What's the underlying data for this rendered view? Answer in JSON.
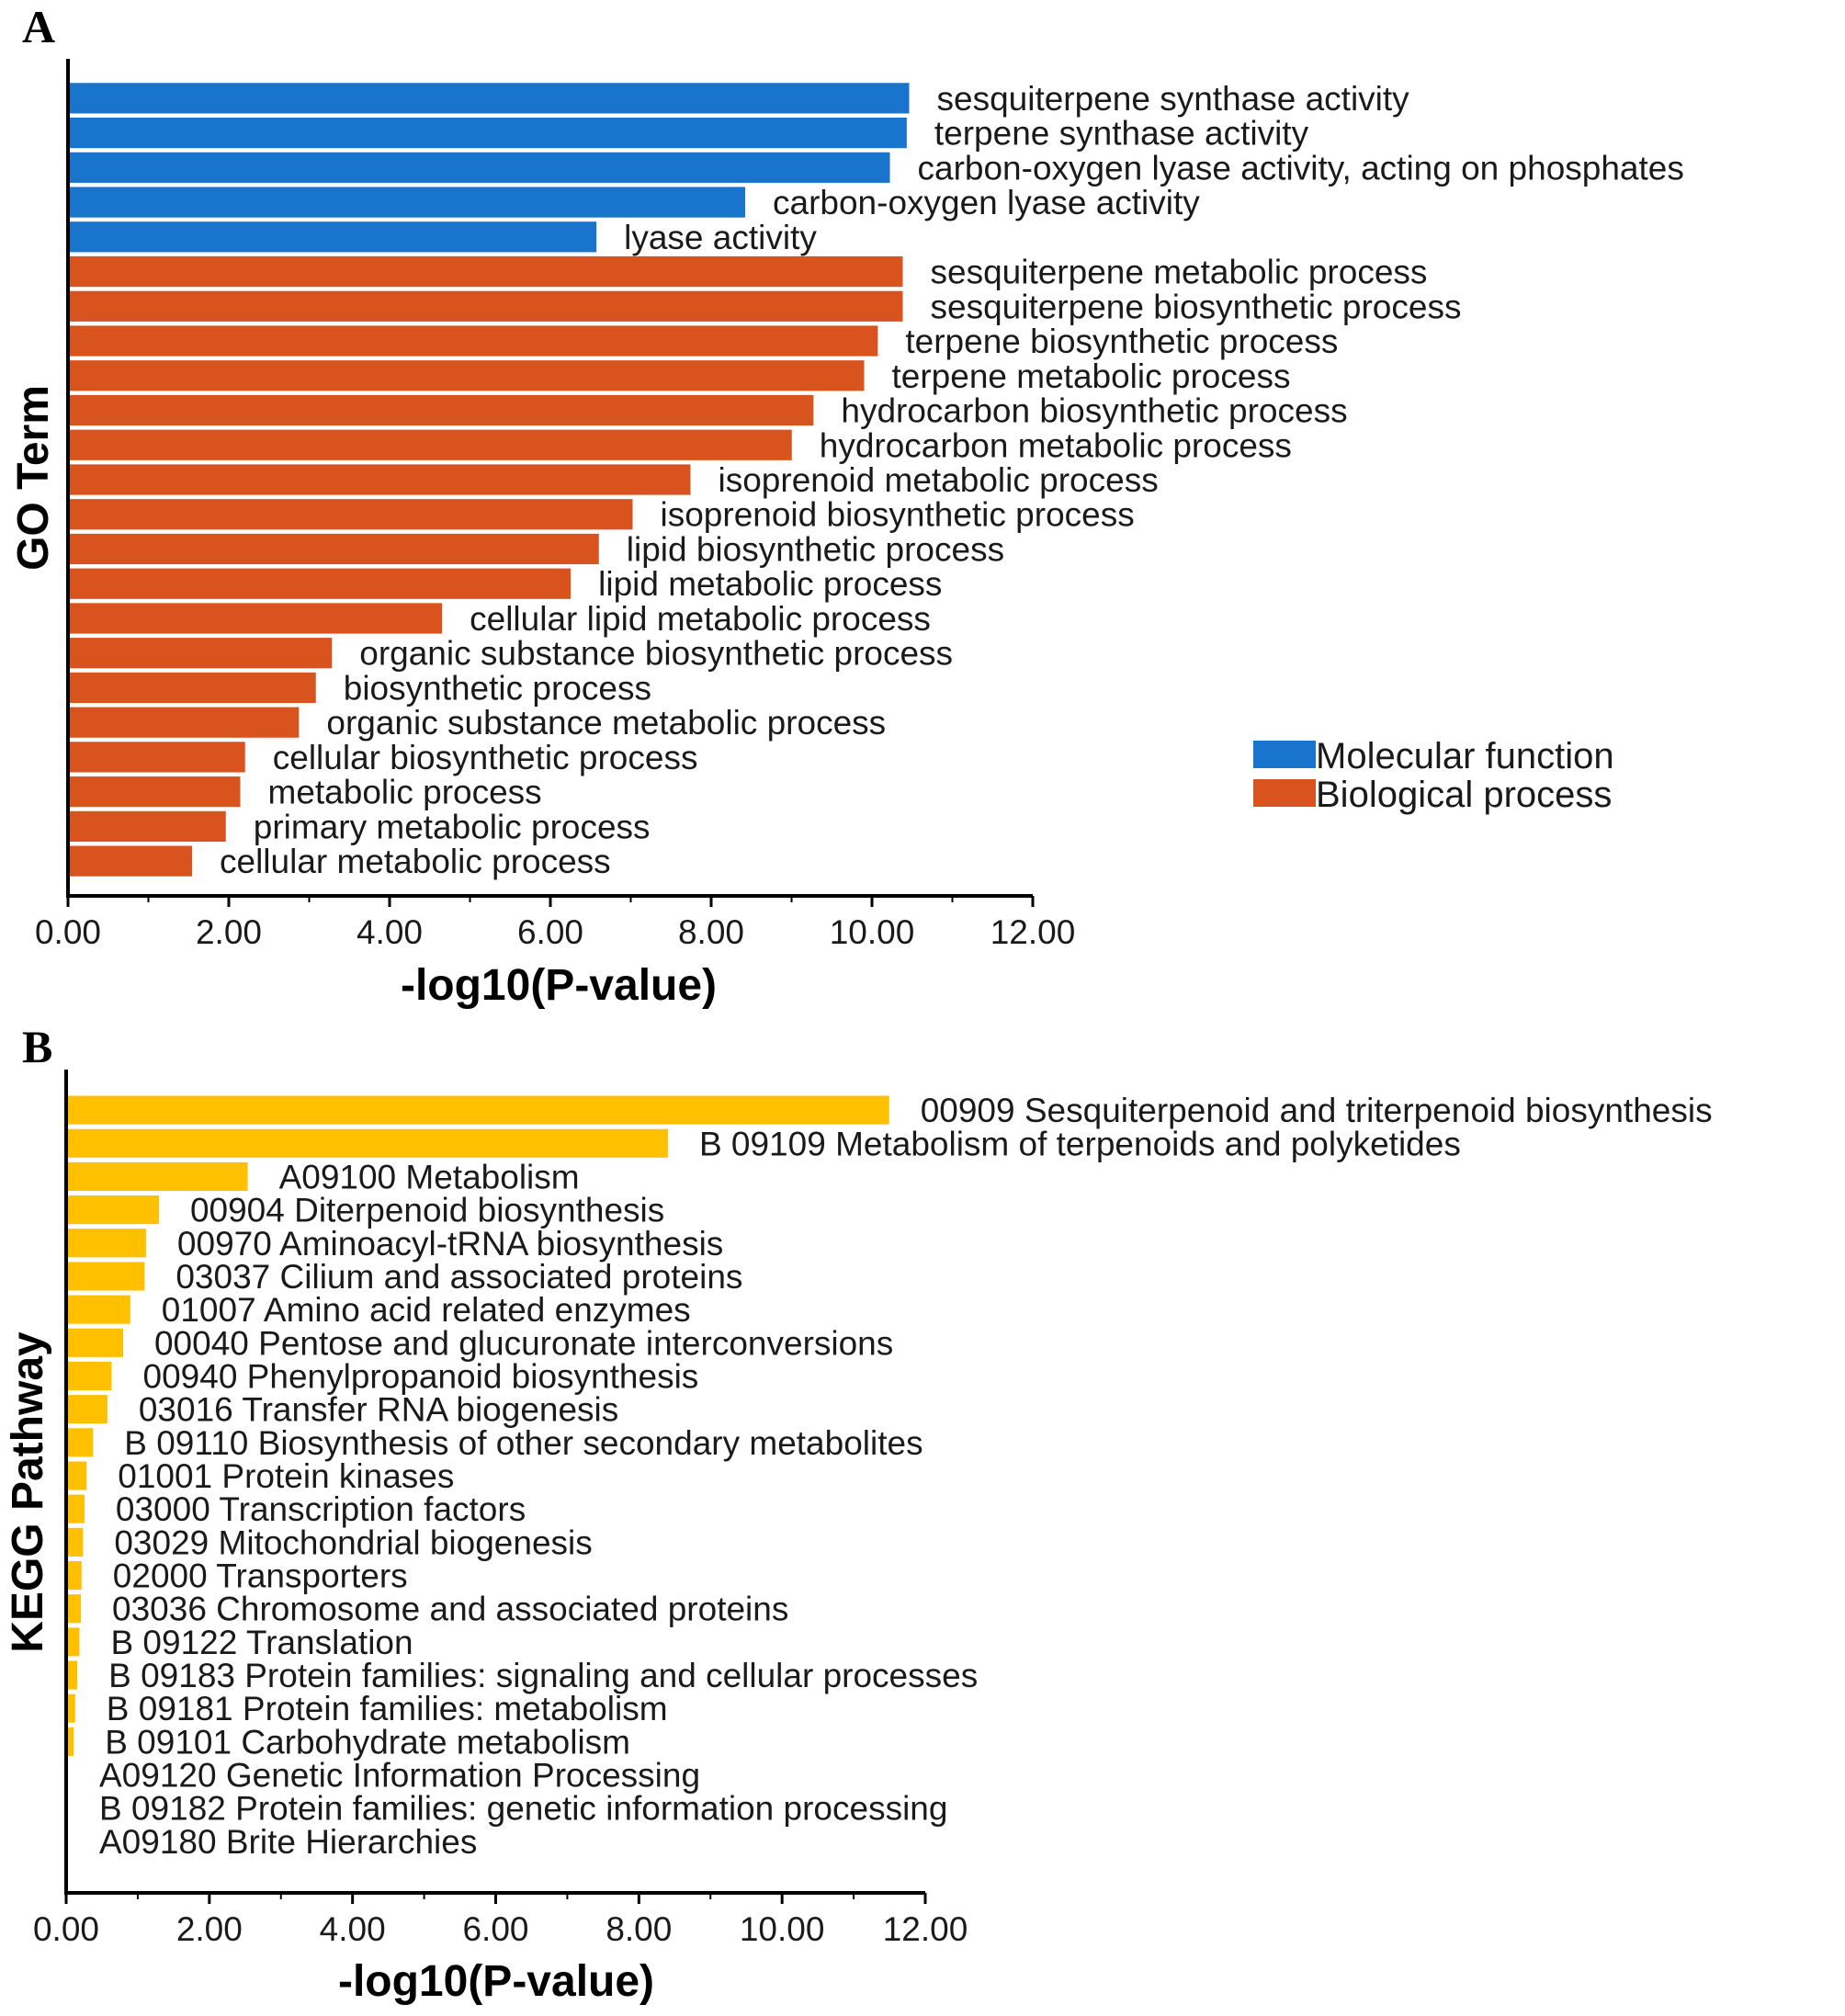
{
  "panel_labels": [
    "A",
    "B"
  ],
  "colors": {
    "molecular_function": "#1874cd",
    "biological_process": "#d9531e",
    "kegg": "#ffc000",
    "axis": "#000000"
  },
  "chart_data": [
    {
      "type": "bar",
      "orientation": "horizontal",
      "panel": "A",
      "title": "",
      "xlabel": "-log10(P-value)",
      "ylabel": "GO Term",
      "xlim": [
        0,
        12
      ],
      "xticks": [
        "0.00",
        "2.00",
        "4.00",
        "6.00",
        "8.00",
        "10.00",
        "12.00"
      ],
      "grid": false,
      "legend": {
        "position": "right",
        "entries": [
          "Molecular function",
          "Biological process"
        ]
      },
      "categories": [
        "sesquiterpene synthase activity",
        "terpene synthase activity",
        "carbon-oxygen lyase activity, acting on phosphates",
        "carbon-oxygen lyase activity",
        "lyase activity",
        "sesquiterpene metabolic process",
        "sesquiterpene biosynthetic process",
        "terpene biosynthetic process",
        "terpene metabolic process",
        "hydrocarbon biosynthetic process",
        "hydrocarbon metabolic process",
        "isoprenoid metabolic process",
        "isoprenoid biosynthetic process",
        "lipid biosynthetic process",
        "lipid metabolic process",
        "cellular lipid metabolic process",
        "organic substance biosynthetic process",
        "biosynthetic process",
        "organic substance metabolic process",
        "cellular biosynthetic process",
        "metabolic process",
        "primary metabolic process",
        "cellular metabolic process"
      ],
      "values": [
        10.44,
        10.41,
        10.2,
        8.4,
        6.55,
        10.36,
        10.36,
        10.05,
        9.88,
        9.25,
        8.98,
        7.72,
        7.0,
        6.58,
        6.23,
        4.63,
        3.26,
        3.06,
        2.85,
        2.18,
        2.12,
        1.94,
        1.52
      ],
      "groups": [
        "Molecular function",
        "Molecular function",
        "Molecular function",
        "Molecular function",
        "Molecular function",
        "Biological process",
        "Biological process",
        "Biological process",
        "Biological process",
        "Biological process",
        "Biological process",
        "Biological process",
        "Biological process",
        "Biological process",
        "Biological process",
        "Biological process",
        "Biological process",
        "Biological process",
        "Biological process",
        "Biological process",
        "Biological process",
        "Biological process",
        "Biological process"
      ]
    },
    {
      "type": "bar",
      "orientation": "horizontal",
      "panel": "B",
      "title": "",
      "xlabel": "-log10(P-value)",
      "ylabel": "KEGG Pathway",
      "xlim": [
        0,
        12
      ],
      "xticks": [
        "0.00",
        "2.00",
        "4.00",
        "6.00",
        "8.00",
        "10.00",
        "12.00"
      ],
      "grid": false,
      "categories": [
        "00909 Sesquiterpenoid and triterpenoid biosynthesis",
        "B  09109 Metabolism of terpenoids and polyketides",
        "A09100 Metabolism",
        "00904 Diterpenoid biosynthesis",
        "00970 Aminoacyl-tRNA biosynthesis",
        "03037 Cilium and associated proteins",
        "01007 Amino acid related enzymes",
        "00040 Pentose and glucuronate interconversions",
        "00940 Phenylpropanoid biosynthesis",
        "03016 Transfer RNA biogenesis",
        "B  09110 Biosynthesis of other secondary metabolites",
        "01001 Protein kinases",
        "03000 Transcription factors",
        "03029 Mitochondrial biogenesis",
        "02000 Transporters",
        "03036 Chromosome and associated proteins",
        "B  09122 Translation",
        "B  09183 Protein families: signaling and cellular processes",
        "B  09181 Protein families: metabolism",
        "B  09101 Carbohydrate metabolism",
        "A09120 Genetic Information Processing",
        "B  09182 Protein families: genetic information processing",
        "A09180 Brite Hierarchies"
      ],
      "values": [
        11.47,
        8.38,
        2.51,
        1.27,
        1.09,
        1.07,
        0.87,
        0.77,
        0.61,
        0.55,
        0.35,
        0.26,
        0.23,
        0.21,
        0.19,
        0.18,
        0.16,
        0.13,
        0.1,
        0.08,
        0.0,
        0.0,
        0.0
      ]
    }
  ]
}
